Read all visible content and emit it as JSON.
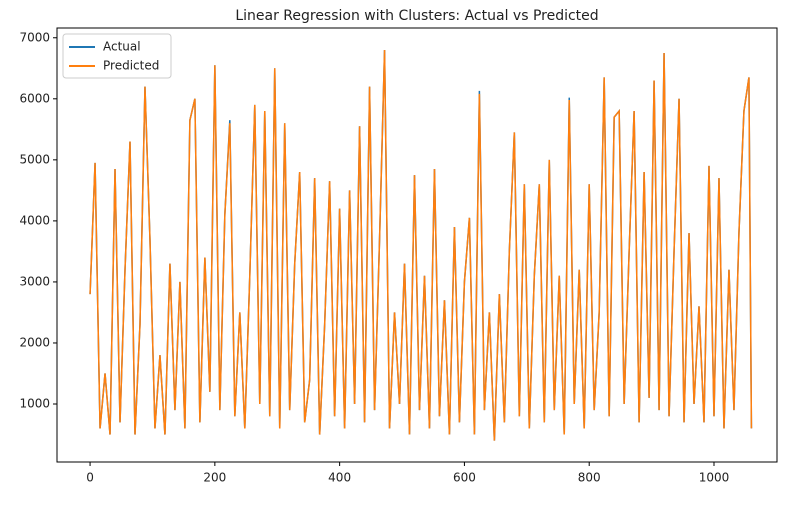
{
  "chart_data": {
    "type": "line",
    "title": "Linear Regression with Clusters: Actual vs Predicted",
    "x": [
      0,
      8,
      16,
      24,
      32,
      40,
      48,
      56,
      64,
      72,
      80,
      88,
      96,
      104,
      112,
      120,
      128,
      136,
      144,
      152,
      160,
      168,
      176,
      184,
      192,
      200,
      208,
      216,
      224,
      232,
      240,
      248,
      256,
      264,
      272,
      280,
      288,
      296,
      304,
      312,
      320,
      328,
      336,
      344,
      352,
      360,
      368,
      376,
      384,
      392,
      400,
      408,
      416,
      424,
      432,
      440,
      448,
      456,
      464,
      472,
      480,
      488,
      496,
      504,
      512,
      520,
      528,
      536,
      544,
      552,
      560,
      568,
      576,
      584,
      592,
      600,
      608,
      616,
      624,
      632,
      640,
      648,
      656,
      664,
      672,
      680,
      688,
      696,
      704,
      712,
      720,
      728,
      736,
      744,
      752,
      760,
      768,
      776,
      784,
      792,
      800,
      808,
      816,
      824,
      832,
      840,
      848,
      856,
      864,
      872,
      880,
      888,
      896,
      904,
      912,
      920,
      928,
      936,
      944,
      952,
      960,
      968,
      976,
      984,
      992,
      1000,
      1008,
      1016,
      1024,
      1032,
      1040,
      1048,
      1056,
      1060
    ],
    "series": [
      {
        "name": "Actual",
        "color": "#1f77b4",
        "values": [
          2800,
          4950,
          600,
          1500,
          500,
          4850,
          700,
          3200,
          5300,
          500,
          2300,
          6200,
          3700,
          600,
          1800,
          500,
          3300,
          900,
          3000,
          600,
          5650,
          6000,
          700,
          3400,
          1200,
          6550,
          900,
          4100,
          5650,
          800,
          2500,
          600,
          3100,
          5900,
          1000,
          5800,
          800,
          6500,
          600,
          5600,
          900,
          3300,
          4800,
          700,
          1400,
          4700,
          500,
          2300,
          4650,
          800,
          4200,
          600,
          4500,
          1000,
          5550,
          700,
          6200,
          900,
          3700,
          6800,
          600,
          2500,
          1000,
          3300,
          500,
          4750,
          900,
          3100,
          600,
          4850,
          800,
          2700,
          500,
          3900,
          700,
          3000,
          4050,
          500,
          6130,
          900,
          2500,
          400,
          2800,
          700,
          3500,
          5450,
          800,
          4600,
          600,
          3100,
          4600,
          700,
          5000,
          900,
          3100,
          500,
          6020,
          1000,
          3200,
          600,
          4600,
          900,
          2500,
          6350,
          800,
          5700,
          5800,
          1000,
          3500,
          5800,
          700,
          4800,
          1100,
          6300,
          900,
          6750,
          800,
          3500,
          6000,
          700,
          3800,
          1000,
          2600,
          700,
          4900,
          800,
          4700,
          600,
          3200,
          900,
          3800,
          5800,
          6350,
          600
        ]
      },
      {
        "name": "Predicted",
        "color": "#ff7f0e",
        "values": [
          2800,
          4950,
          600,
          1500,
          500,
          4850,
          700,
          3200,
          5300,
          500,
          2300,
          6200,
          3700,
          600,
          1800,
          500,
          3300,
          900,
          3000,
          600,
          5650,
          6000,
          700,
          3400,
          1200,
          6550,
          900,
          4100,
          5600,
          800,
          2500,
          600,
          3100,
          5900,
          1000,
          5800,
          800,
          6500,
          600,
          5600,
          900,
          3300,
          4800,
          700,
          1400,
          4700,
          500,
          2300,
          4650,
          800,
          4200,
          600,
          4500,
          1000,
          5550,
          700,
          6200,
          900,
          3700,
          6800,
          600,
          2500,
          1000,
          3300,
          500,
          4750,
          900,
          3100,
          600,
          4850,
          800,
          2700,
          500,
          3900,
          700,
          3000,
          4050,
          500,
          6080,
          900,
          2500,
          400,
          2800,
          700,
          3500,
          5450,
          800,
          4600,
          600,
          3100,
          4600,
          700,
          5000,
          900,
          3100,
          500,
          5980,
          1000,
          3200,
          600,
          4600,
          900,
          2500,
          6350,
          800,
          5700,
          5800,
          1000,
          3500,
          5800,
          700,
          4800,
          1100,
          6300,
          900,
          6750,
          800,
          3500,
          6000,
          700,
          3800,
          1000,
          2600,
          700,
          4900,
          800,
          4700,
          600,
          3200,
          900,
          3800,
          5800,
          6350,
          600
        ]
      }
    ],
    "xlim": [
      -53,
      1101
    ],
    "ylim": [
      50,
      7160
    ],
    "xticks": [
      0,
      200,
      400,
      600,
      800,
      1000
    ],
    "yticks": [
      1000,
      2000,
      3000,
      4000,
      5000,
      6000,
      7000
    ],
    "legend": "upper left"
  }
}
